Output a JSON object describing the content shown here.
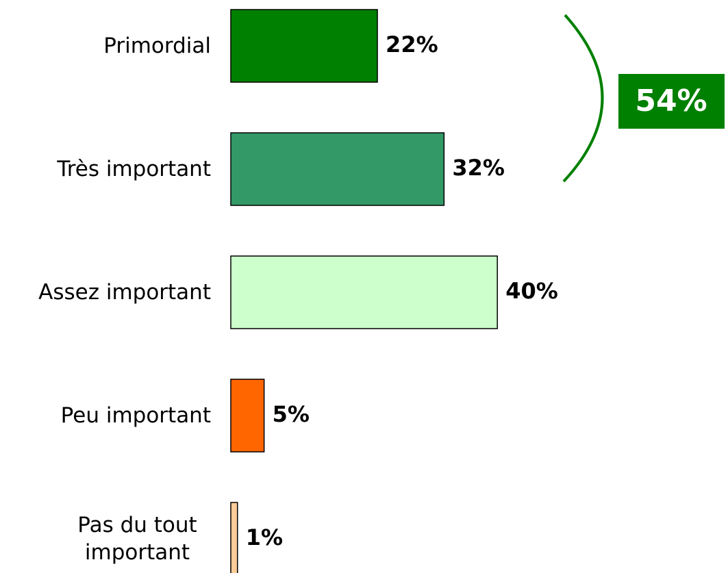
{
  "chart_data": {
    "type": "hbar",
    "categories": [
      "Primordial",
      "Très important",
      "Assez important",
      "Peu important",
      "Pas du tout important"
    ],
    "values": [
      22,
      32,
      40,
      5,
      1
    ],
    "value_labels": [
      "22%",
      "32%",
      "40%",
      "5%",
      "1%"
    ],
    "colors": [
      "#008000",
      "#339966",
      "#ccffcc",
      "#ff6600",
      "#ffcc99"
    ],
    "annotations": [
      {
        "text": "54%",
        "color": "#008000"
      }
    ]
  }
}
